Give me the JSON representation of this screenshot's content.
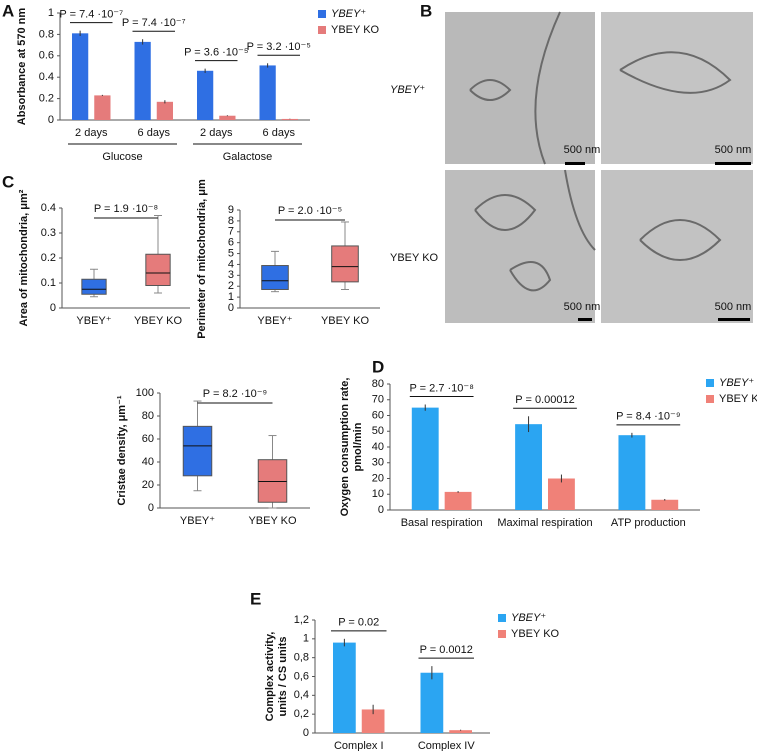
{
  "chart_data": [
    {
      "type": "bar",
      "panel": "A",
      "ylabel": [
        "Absorbance at 570 nm"
      ],
      "categories": [
        "2 days",
        "6 days",
        "2 days",
        "6 days"
      ],
      "groups": [
        "Glucose",
        "Galactose"
      ],
      "series": [
        {
          "name": "YBEY⁺",
          "color": "#2f6fe3",
          "values": [
            0.81,
            0.73,
            0.46,
            0.51
          ],
          "errors": [
            0.025,
            0.025,
            0.02,
            0.02
          ]
        },
        {
          "name": "YBEY KO",
          "color": "#e57b7b",
          "values": [
            0.23,
            0.17,
            0.04,
            0.01
          ],
          "errors": [
            0.005,
            0.015,
            0.004,
            0.002
          ]
        }
      ],
      "annotations": [
        "P = 7.4 ·10⁻⁷",
        "P = 7.4 ·10⁻⁷",
        "P = 3.6 ·10⁻⁵",
        "P = 3.2 ·10⁻⁵"
      ],
      "ylim": [
        0,
        1
      ],
      "yticks": [
        0,
        0.2,
        0.4,
        0.6,
        0.8,
        1
      ],
      "legend": "right"
    },
    {
      "type": "box",
      "panel": "C",
      "ylabel": [
        "Area of mitochondria, μm²"
      ],
      "categories": [
        "YBEY⁺",
        "YBEY KO"
      ],
      "boxes": [
        {
          "color": "#2f6fe3",
          "min": 0.045,
          "q1": 0.055,
          "median": 0.075,
          "q3": 0.115,
          "max": 0.155
        },
        {
          "color": "#e57b7b",
          "min": 0.06,
          "q1": 0.09,
          "median": 0.14,
          "q3": 0.215,
          "max": 0.37
        }
      ],
      "annotation": "P = 1.9 ·10⁻⁸",
      "ylim": [
        0,
        0.4
      ],
      "yticks": [
        0,
        0.1,
        0.2,
        0.3,
        0.4
      ]
    },
    {
      "type": "box",
      "ylabel": [
        "Perimeter of mitochondria, μm"
      ],
      "categories": [
        "YBEY⁺",
        "YBEY KO"
      ],
      "boxes": [
        {
          "color": "#2f6fe3",
          "min": 1.5,
          "q1": 1.7,
          "median": 2.5,
          "q3": 3.9,
          "max": 5.2
        },
        {
          "color": "#e57b7b",
          "min": 1.7,
          "q1": 2.4,
          "median": 3.8,
          "q3": 5.7,
          "max": 7.9
        }
      ],
      "annotation": "P = 2.0 ·10⁻⁵",
      "ylim": [
        0,
        9
      ],
      "yticks": [
        0,
        1,
        2,
        3,
        4,
        5,
        6,
        7,
        8,
        9
      ]
    },
    {
      "type": "box",
      "ylabel": [
        "Cristae density, μm⁻¹"
      ],
      "categories": [
        "YBEY⁺",
        "YBEY KO"
      ],
      "boxes": [
        {
          "color": "#2f6fe3",
          "min": 15,
          "q1": 28,
          "median": 54,
          "q3": 71,
          "max": 93
        },
        {
          "color": "#e57b7b",
          "min": 0,
          "q1": 5,
          "median": 23,
          "q3": 42,
          "max": 63
        }
      ],
      "annotation": "P = 8.2 ·10⁻⁹",
      "ylim": [
        0,
        100
      ],
      "yticks": [
        0,
        20,
        40,
        60,
        80,
        100
      ]
    },
    {
      "type": "bar",
      "panel": "D",
      "ylabel": [
        "Oxygen consumption rate,",
        "pmol/min"
      ],
      "categories": [
        "Basal respiration",
        "Maximal respiration",
        "ATP production"
      ],
      "series": [
        {
          "name": "YBEY⁺",
          "color": "#2ba5f2",
          "values": [
            65,
            54.5,
            47.5
          ],
          "errors": [
            2,
            5,
            1.5
          ]
        },
        {
          "name": "YBEY KO",
          "color": "#f08178",
          "values": [
            11.5,
            20,
            6.5
          ],
          "errors": [
            0.5,
            2.5,
            0.5
          ]
        }
      ],
      "annotations": [
        "P = 2.7 ·10⁻⁸",
        "P = 0.00012",
        "P = 8.4 ·10⁻⁹"
      ],
      "ylim": [
        0,
        80
      ],
      "yticks": [
        0,
        10,
        20,
        30,
        40,
        50,
        60,
        70,
        80
      ],
      "legend": "right"
    },
    {
      "type": "bar",
      "panel": "E",
      "ylabel": [
        "Complex activity,",
        "units / CS units"
      ],
      "categories": [
        "Complex I",
        "Complex IV"
      ],
      "series": [
        {
          "name": "YBEY⁺",
          "color": "#2ba5f2",
          "values": [
            0.96,
            0.64
          ],
          "errors": [
            0.04,
            0.07
          ]
        },
        {
          "name": "YBEY KO",
          "color": "#f08178",
          "values": [
            0.25,
            0.03
          ],
          "errors": [
            0.05,
            0.005
          ]
        }
      ],
      "annotations": [
        "P = 0.02",
        "P = 0.0012"
      ],
      "ylim": [
        0,
        1.2
      ],
      "yticks": [
        0,
        {
          "value": 0.2,
          "label": "0,2"
        },
        {
          "value": 0.4,
          "label": "0,4"
        },
        {
          "value": 0.6,
          "label": "0,6"
        },
        {
          "value": 0.8,
          "label": "0,8"
        },
        1,
        {
          "value": 1.2,
          "label": "1,2"
        }
      ],
      "legend": "right"
    }
  ],
  "panel_b": {
    "panel": "B",
    "rows": [
      {
        "label": "YBEY⁺",
        "scale_bars": [
          "500 nm",
          "500 nm"
        ]
      },
      {
        "label": "YBEY KO",
        "scale_bars": [
          "500 nm",
          "500 nm"
        ]
      }
    ]
  }
}
